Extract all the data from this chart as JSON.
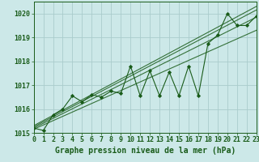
{
  "title": "Graphe pression niveau de la mer (hPa)",
  "bg_color": "#cce8e8",
  "grid_color": "#aacccc",
  "line_color": "#1a5c1a",
  "x_min": 0,
  "x_max": 23,
  "y_min": 1015,
  "y_max": 1020.5,
  "yticks": [
    1015,
    1016,
    1017,
    1018,
    1019,
    1020
  ],
  "hours": [
    0,
    1,
    2,
    3,
    4,
    5,
    6,
    7,
    8,
    9,
    10,
    11,
    12,
    13,
    14,
    15,
    16,
    17,
    18,
    19,
    20,
    21,
    22,
    23
  ],
  "pressure": [
    1015.2,
    1015.1,
    1015.75,
    1016.0,
    1016.55,
    1016.3,
    1016.6,
    1016.5,
    1016.75,
    1016.65,
    1017.8,
    1016.55,
    1017.6,
    1016.55,
    1017.55,
    1016.55,
    1017.8,
    1016.55,
    1018.75,
    1019.1,
    1020.0,
    1019.5,
    1019.5,
    1019.9
  ],
  "trend_lines": [
    [
      1015.15,
      1019.3
    ],
    [
      1015.2,
      1019.85
    ],
    [
      1015.25,
      1020.15
    ],
    [
      1015.3,
      1020.3
    ]
  ],
  "font_size_label": 7,
  "font_size_tick": 6,
  "marker_size": 3.5,
  "lw_main": 0.8,
  "lw_trend": 0.8
}
